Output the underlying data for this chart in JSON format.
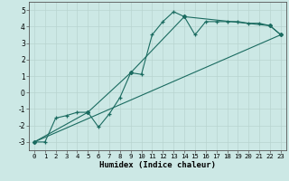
{
  "title": "",
  "xlabel": "Humidex (Indice chaleur)",
  "ylabel": "",
  "bg_color": "#cce8e5",
  "line_color": "#1a6b60",
  "grid_color": "#b8d4d0",
  "xlim": [
    -0.5,
    23.5
  ],
  "ylim": [
    -3.5,
    5.5
  ],
  "xticks": [
    0,
    1,
    2,
    3,
    4,
    5,
    6,
    7,
    8,
    9,
    10,
    11,
    12,
    13,
    14,
    15,
    16,
    17,
    18,
    19,
    20,
    21,
    22,
    23
  ],
  "yticks": [
    -3,
    -2,
    -1,
    0,
    1,
    2,
    3,
    4,
    5
  ],
  "line1_x": [
    0,
    1,
    2,
    3,
    4,
    5,
    6,
    7,
    8,
    9,
    10,
    11,
    12,
    13,
    14,
    15,
    16,
    17,
    18,
    19,
    20,
    21,
    22,
    23
  ],
  "line1_y": [
    -3.0,
    -3.0,
    -1.55,
    -1.4,
    -1.2,
    -1.2,
    -2.1,
    -1.3,
    -0.3,
    1.2,
    1.1,
    3.5,
    4.3,
    4.9,
    4.6,
    3.5,
    4.3,
    4.3,
    4.3,
    4.3,
    4.2,
    4.2,
    4.05,
    3.5
  ],
  "line2_x": [
    0,
    23
  ],
  "line2_y": [
    -3.0,
    3.5
  ],
  "line3_x": [
    0,
    5,
    9,
    14,
    22,
    23
  ],
  "line3_y": [
    -3.0,
    -1.2,
    1.2,
    4.6,
    4.05,
    3.5
  ],
  "xlabel_fontsize": 6.5,
  "tick_fontsize": 5.5
}
